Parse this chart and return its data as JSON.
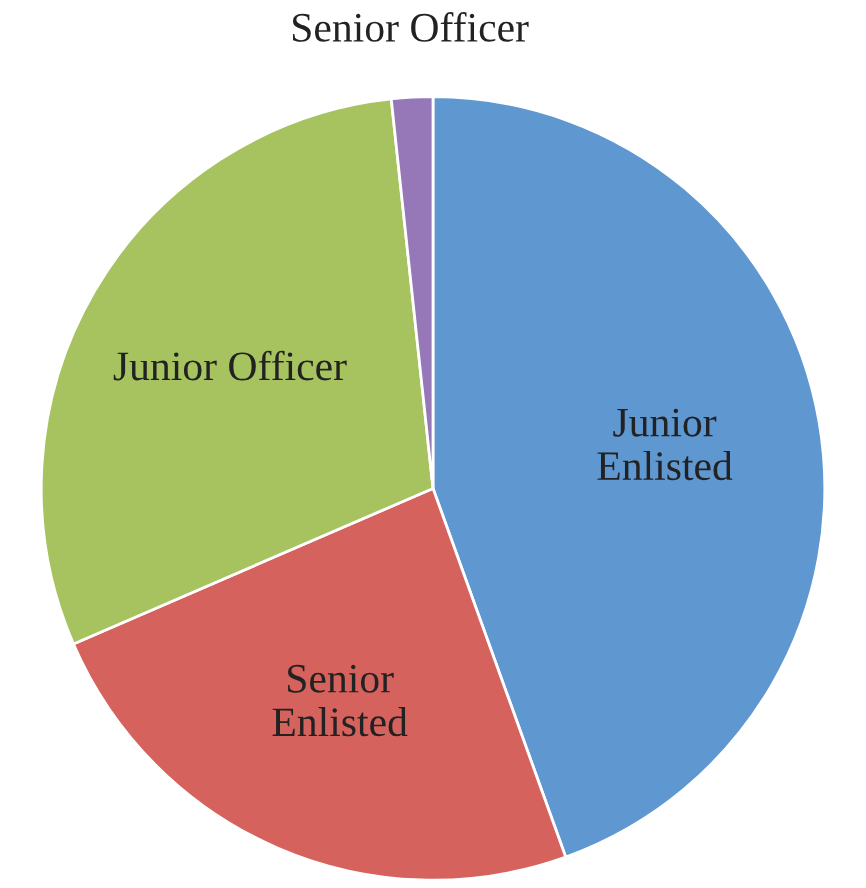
{
  "chart_data": {
    "type": "pie",
    "categories": [
      "Junior\nEnlisted",
      "Senior\nEnlisted",
      "Junior Officer",
      "Senior Officer"
    ],
    "values": [
      44.5,
      24,
      29.8,
      1.7
    ],
    "colors": [
      "#5f97d0",
      "#d6625e",
      "#a6c35f",
      "#9677b8"
    ],
    "legend": false
  }
}
